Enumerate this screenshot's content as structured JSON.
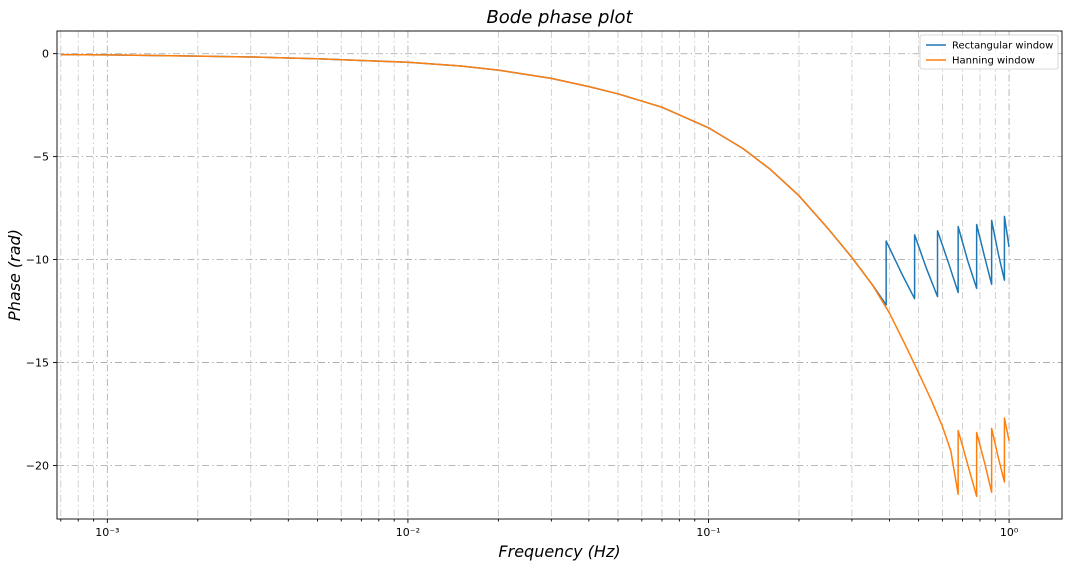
{
  "chart_data": {
    "type": "line",
    "title": "Bode phase plot",
    "xlabel": "Frequency (Hz)",
    "ylabel": "Phase (rad)",
    "xscale": "log",
    "xlim": [
      0.00068,
      1.5
    ],
    "ylim": [
      -22.6,
      1.1
    ],
    "yticks": [
      0,
      -5,
      -10,
      -15,
      -20
    ],
    "ytick_labels": [
      "0",
      "−5",
      "−10",
      "−15",
      "−20"
    ],
    "xticks": [
      0.001,
      0.01,
      0.1,
      1
    ],
    "xtick_labels": [
      "10⁻³",
      "10⁻²",
      "10⁻¹",
      "10⁰"
    ],
    "grid": true,
    "legend_position": "top-right",
    "series": [
      {
        "name": "Rectangular window",
        "color": "#1f77b4",
        "x": [
          0.0007,
          0.001,
          0.002,
          0.003,
          0.004,
          0.005,
          0.007,
          0.01,
          0.015,
          0.02,
          0.03,
          0.04,
          0.05,
          0.07,
          0.1,
          0.13,
          0.16,
          0.2,
          0.25,
          0.3,
          0.35,
          0.39,
          0.39,
          0.44,
          0.485,
          0.485,
          0.53,
          0.578,
          0.578,
          0.63,
          0.677,
          0.677,
          0.73,
          0.78,
          0.78,
          0.83,
          0.875,
          0.875,
          0.92,
          0.965,
          0.965,
          1.0
        ],
        "y": [
          -0.05,
          -0.06,
          -0.12,
          -0.16,
          -0.21,
          -0.25,
          -0.33,
          -0.42,
          -0.6,
          -0.8,
          -1.2,
          -1.6,
          -1.95,
          -2.6,
          -3.6,
          -4.6,
          -5.6,
          -6.9,
          -8.5,
          -9.9,
          -11.2,
          -12.2,
          -9.1,
          -10.7,
          -11.9,
          -8.8,
          -10.4,
          -11.8,
          -8.6,
          -10.2,
          -11.6,
          -8.4,
          -10.1,
          -11.4,
          -8.3,
          -9.9,
          -11.2,
          -8.1,
          -9.7,
          -11.0,
          -7.9,
          -9.4
        ]
      },
      {
        "name": "Hanning window",
        "color": "#ff7f0e",
        "x": [
          0.0007,
          0.001,
          0.002,
          0.003,
          0.004,
          0.005,
          0.007,
          0.01,
          0.015,
          0.02,
          0.03,
          0.04,
          0.05,
          0.07,
          0.1,
          0.13,
          0.16,
          0.2,
          0.25,
          0.3,
          0.35,
          0.4,
          0.45,
          0.5,
          0.55,
          0.6,
          0.64,
          0.677,
          0.677,
          0.73,
          0.78,
          0.78,
          0.83,
          0.875,
          0.875,
          0.92,
          0.965,
          0.965,
          1.0
        ],
        "y": [
          -0.05,
          -0.06,
          -0.12,
          -0.16,
          -0.21,
          -0.25,
          -0.33,
          -0.42,
          -0.6,
          -0.8,
          -1.2,
          -1.6,
          -1.95,
          -2.6,
          -3.6,
          -4.6,
          -5.6,
          -6.9,
          -8.5,
          -9.9,
          -11.2,
          -12.6,
          -14.1,
          -15.5,
          -16.8,
          -18.1,
          -19.3,
          -21.4,
          -18.3,
          -20.0,
          -21.5,
          -18.4,
          -19.9,
          -21.3,
          -18.2,
          -19.6,
          -20.8,
          -17.7,
          -18.8
        ]
      }
    ]
  }
}
